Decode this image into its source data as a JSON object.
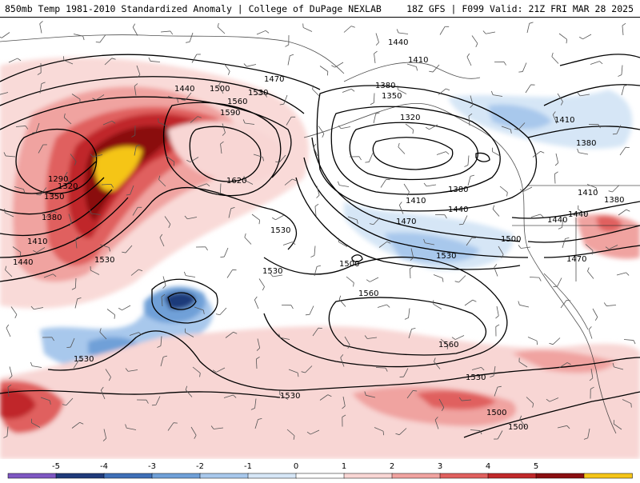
{
  "header": {
    "title_left": "850mb Temp 1981-2010 Standardized Anomaly | College of DuPage NEXLAB",
    "title_right": "18Z GFS | F099 Valid: 21Z FRI MAR 28 2025"
  },
  "colorbar": {
    "labels": [
      "-5",
      "-4",
      "-3",
      "-2",
      "-1",
      "0",
      "1",
      "2",
      "3",
      "4",
      "5"
    ],
    "colors": [
      "#7e57c2",
      "#1f3a7a",
      "#3f6fb7",
      "#6fa0d8",
      "#a8c8ec",
      "#d6e6f6",
      "#ffffff",
      "#f8d6d4",
      "#f0a3a0",
      "#e0605e",
      "#c0282a",
      "#8a0e10",
      "#f5c518"
    ]
  },
  "contour_labels": [
    "1440",
    "1500",
    "1470",
    "1530",
    "1560",
    "1590",
    "1620",
    "1290",
    "1320",
    "1350",
    "1380",
    "1410",
    "1440",
    "1530",
    "1530",
    "1530",
    "1440",
    "1410",
    "1380",
    "1350",
    "1320",
    "1380",
    "1410",
    "1440",
    "1470",
    "1500",
    "1530",
    "1500",
    "1560",
    "1560",
    "1530",
    "1530",
    "1500",
    "1440",
    "1410",
    "1380",
    "1410",
    "1380",
    "1440",
    "1470",
    "1530",
    "1500"
  ]
}
